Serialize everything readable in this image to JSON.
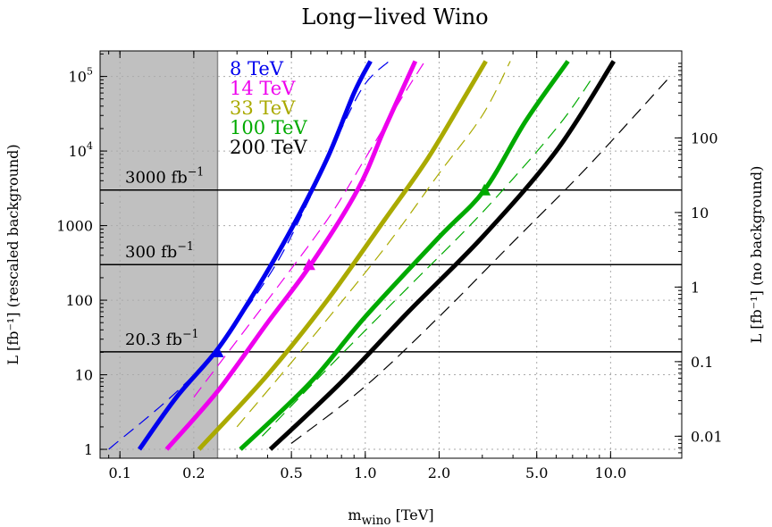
{
  "chart_data": {
    "type": "line",
    "title": "Long−lived Wino",
    "xlabel": {
      "main": "m",
      "sub": "wino",
      "unit": " [TeV]"
    },
    "ylabel_left": "L [fb⁻¹] (rescaled background)",
    "ylabel_right": "L [fb⁻¹] (no background)",
    "x_scale": "log",
    "y_scale": "log",
    "xlim": [
      0.083,
      19.5
    ],
    "ylim": [
      0.76,
      220000
    ],
    "y_right_factor": 0.00667,
    "grid": true,
    "x_ticks": [
      {
        "value": 0.1,
        "label": "0.1"
      },
      {
        "value": 0.2,
        "label": "0.2"
      },
      {
        "value": 0.5,
        "label": "0.5"
      },
      {
        "value": 1.0,
        "label": "1.0"
      },
      {
        "value": 2.0,
        "label": "2.0"
      },
      {
        "value": 5.0,
        "label": "5.0"
      },
      {
        "value": 10.0,
        "label": "10.0"
      }
    ],
    "y_ticks_left": [
      {
        "value": 1,
        "label": "1"
      },
      {
        "value": 10,
        "label": "10"
      },
      {
        "value": 100,
        "label": "100"
      },
      {
        "value": 1000,
        "label": "1000"
      },
      {
        "value": 10000,
        "label": "10",
        "sup": "4"
      },
      {
        "value": 100000,
        "label": "10",
        "sup": "5"
      }
    ],
    "y_ticks_right": [
      {
        "value": 0.01,
        "label": "0.01"
      },
      {
        "value": 0.1,
        "label": "0.1"
      },
      {
        "value": 1,
        "label": "1"
      },
      {
        "value": 10,
        "label": "10"
      },
      {
        "value": 100,
        "label": "100"
      }
    ],
    "excluded_region": {
      "x_max": 0.25,
      "color": "#c0c0c0"
    },
    "luminosity_lines": [
      {
        "value": 3000,
        "label": "3000 fb",
        "sup": "−1"
      },
      {
        "value": 300,
        "label": "300 fb",
        "sup": "−1"
      },
      {
        "value": 20.3,
        "label": "20.3 fb",
        "sup": "−1"
      }
    ],
    "series": [
      {
        "name": "8 TeV",
        "color": "#0000ee",
        "solid": [
          [
            0.12,
            1
          ],
          [
            0.17,
            5
          ],
          [
            0.25,
            22
          ],
          [
            0.35,
            120
          ],
          [
            0.5,
            900
          ],
          [
            0.7,
            8000
          ],
          [
            0.9,
            60000
          ],
          [
            1.05,
            160000
          ]
        ],
        "dashed": [
          [
            0.09,
            1
          ],
          [
            0.2,
            10
          ],
          [
            0.4,
            200
          ],
          [
            0.6,
            2500
          ],
          [
            0.8,
            20000
          ],
          [
            1.0,
            80000
          ],
          [
            1.25,
            160000
          ]
        ],
        "triangle": [
          0.25,
          20.3
        ]
      },
      {
        "name": "14 TeV",
        "color": "#ee00ee",
        "solid": [
          [
            0.155,
            1
          ],
          [
            0.25,
            6
          ],
          [
            0.4,
            50
          ],
          [
            0.6,
            300
          ],
          [
            0.93,
            3000
          ],
          [
            1.2,
            20000
          ],
          [
            1.6,
            160000
          ]
        ],
        "dashed": [
          [
            0.2,
            5
          ],
          [
            0.4,
            100
          ],
          [
            0.7,
            1200
          ],
          [
            1.0,
            8000
          ],
          [
            1.4,
            50000
          ],
          [
            1.75,
            160000
          ]
        ],
        "triangle": [
          0.59,
          300
        ]
      },
      {
        "name": "33 TeV",
        "color": "#aaaa00",
        "solid": [
          [
            0.21,
            1
          ],
          [
            0.4,
            10
          ],
          [
            0.7,
            100
          ],
          [
            1.2,
            1200
          ],
          [
            1.8,
            8000
          ],
          [
            2.6,
            60000
          ],
          [
            3.1,
            160000
          ]
        ],
        "dashed": [
          [
            0.3,
            2
          ],
          [
            0.6,
            30
          ],
          [
            1.2,
            500
          ],
          [
            2.0,
            5000
          ],
          [
            3.0,
            30000
          ],
          [
            3.9,
            160000
          ]
        ],
        "triangle": null
      },
      {
        "name": "100 TeV",
        "color": "#00aa00",
        "solid": [
          [
            0.31,
            1
          ],
          [
            0.6,
            8
          ],
          [
            1.0,
            60
          ],
          [
            2.0,
            700
          ],
          [
            3.06,
            3000
          ],
          [
            4.5,
            25000
          ],
          [
            6.7,
            160000
          ]
        ],
        "dashed": [
          [
            0.38,
            1.5
          ],
          [
            0.7,
            12
          ],
          [
            1.5,
            150
          ],
          [
            3.0,
            1500
          ],
          [
            6.0,
            20000
          ],
          [
            8.5,
            100000
          ]
        ],
        "triangle": [
          3.06,
          3000
        ]
      },
      {
        "name": "200 TeV",
        "color": "#000000",
        "solid": [
          [
            0.41,
            1
          ],
          [
            0.8,
            8
          ],
          [
            1.5,
            70
          ],
          [
            3.0,
            700
          ],
          [
            6.0,
            10000
          ],
          [
            10.3,
            160000
          ]
        ],
        "dashed": [
          [
            0.5,
            1.2
          ],
          [
            1.0,
            7
          ],
          [
            2.0,
            60
          ],
          [
            4.0,
            600
          ],
          [
            8.0,
            6000
          ],
          [
            17.5,
            100000
          ]
        ],
        "triangle": null
      }
    ]
  }
}
